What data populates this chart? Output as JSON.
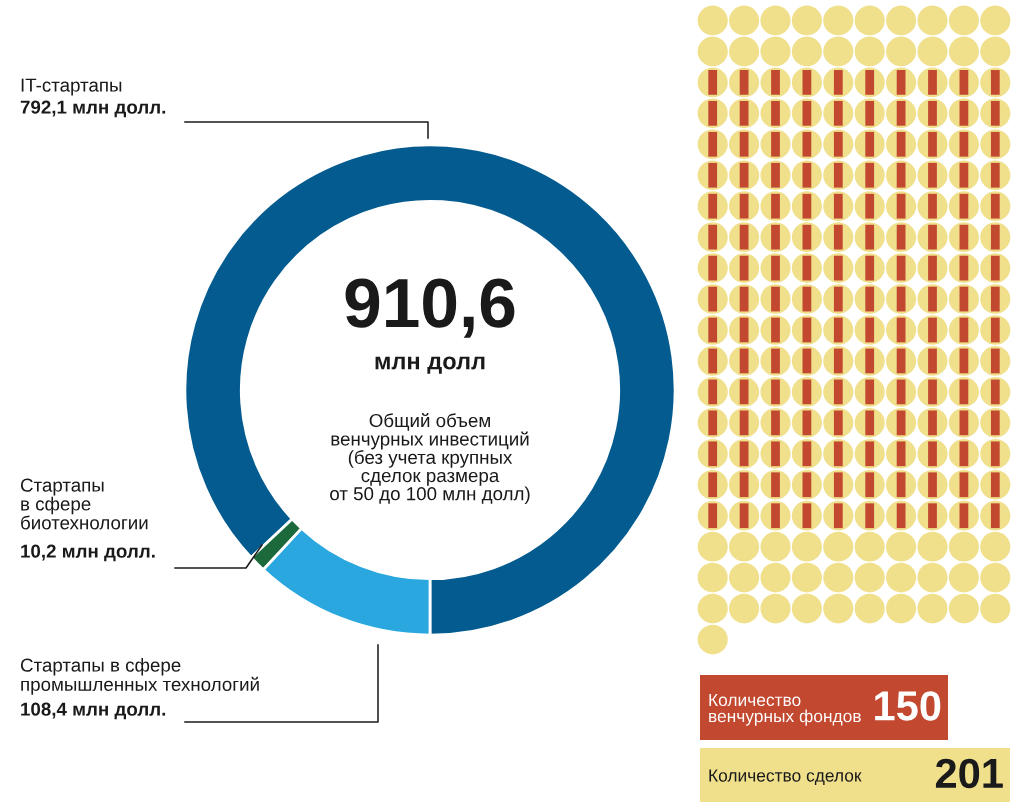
{
  "chart_data": [
    {
      "type": "donut",
      "title": "910,6",
      "subtitle": "млн долл",
      "annotations": [
        "Общий объем\nвенчурных инвестиций\n(без учета крупных\nсделок размера\nот 50 до 100 млн долл)"
      ],
      "categories": [
        "IT-стартапы",
        "Стартапы\nв сфере\nбиотехнологии",
        "Стартапы в сфере\nпромышленных технологий"
      ],
      "values": [
        792.1,
        10.2,
        108.4
      ],
      "value_labels": [
        "792,1 млн долл.",
        "10,2 млн долл.",
        "108,4 млн долл."
      ],
      "colors": [
        "#035b8f",
        "#1c6a3c",
        "#2aa7df"
      ]
    },
    {
      "type": "other",
      "data_labels": true,
      "series": [
        {
          "name": "Количество\nвенчурных фондов",
          "values": [
            150
          ],
          "color": "#c2482f",
          "marker": "square"
        },
        {
          "name": "Количество сделок",
          "values": [
            201
          ],
          "color": "#f0e08c",
          "marker": "circle"
        }
      ]
    }
  ]
}
